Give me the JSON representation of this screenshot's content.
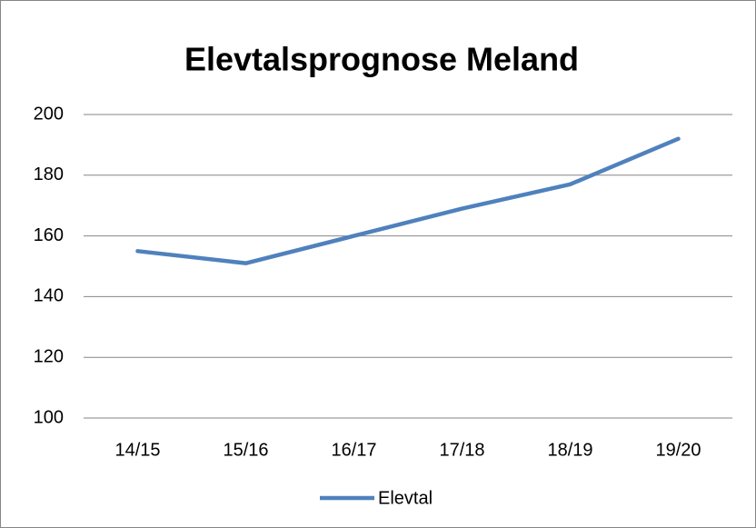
{
  "chart_data": {
    "type": "line",
    "title": "Elevtalsprognose Meland",
    "categories": [
      "14/15",
      "15/16",
      "16/17",
      "17/18",
      "18/19",
      "19/20"
    ],
    "series": [
      {
        "name": "Elevtal",
        "color": "#4f81bd",
        "values": [
          155,
          151,
          160,
          169,
          177,
          192
        ]
      }
    ],
    "ylim": [
      100,
      200
    ],
    "yticks": [
      100,
      120,
      140,
      160,
      180,
      200
    ],
    "grid": true,
    "legend": "bottom"
  }
}
